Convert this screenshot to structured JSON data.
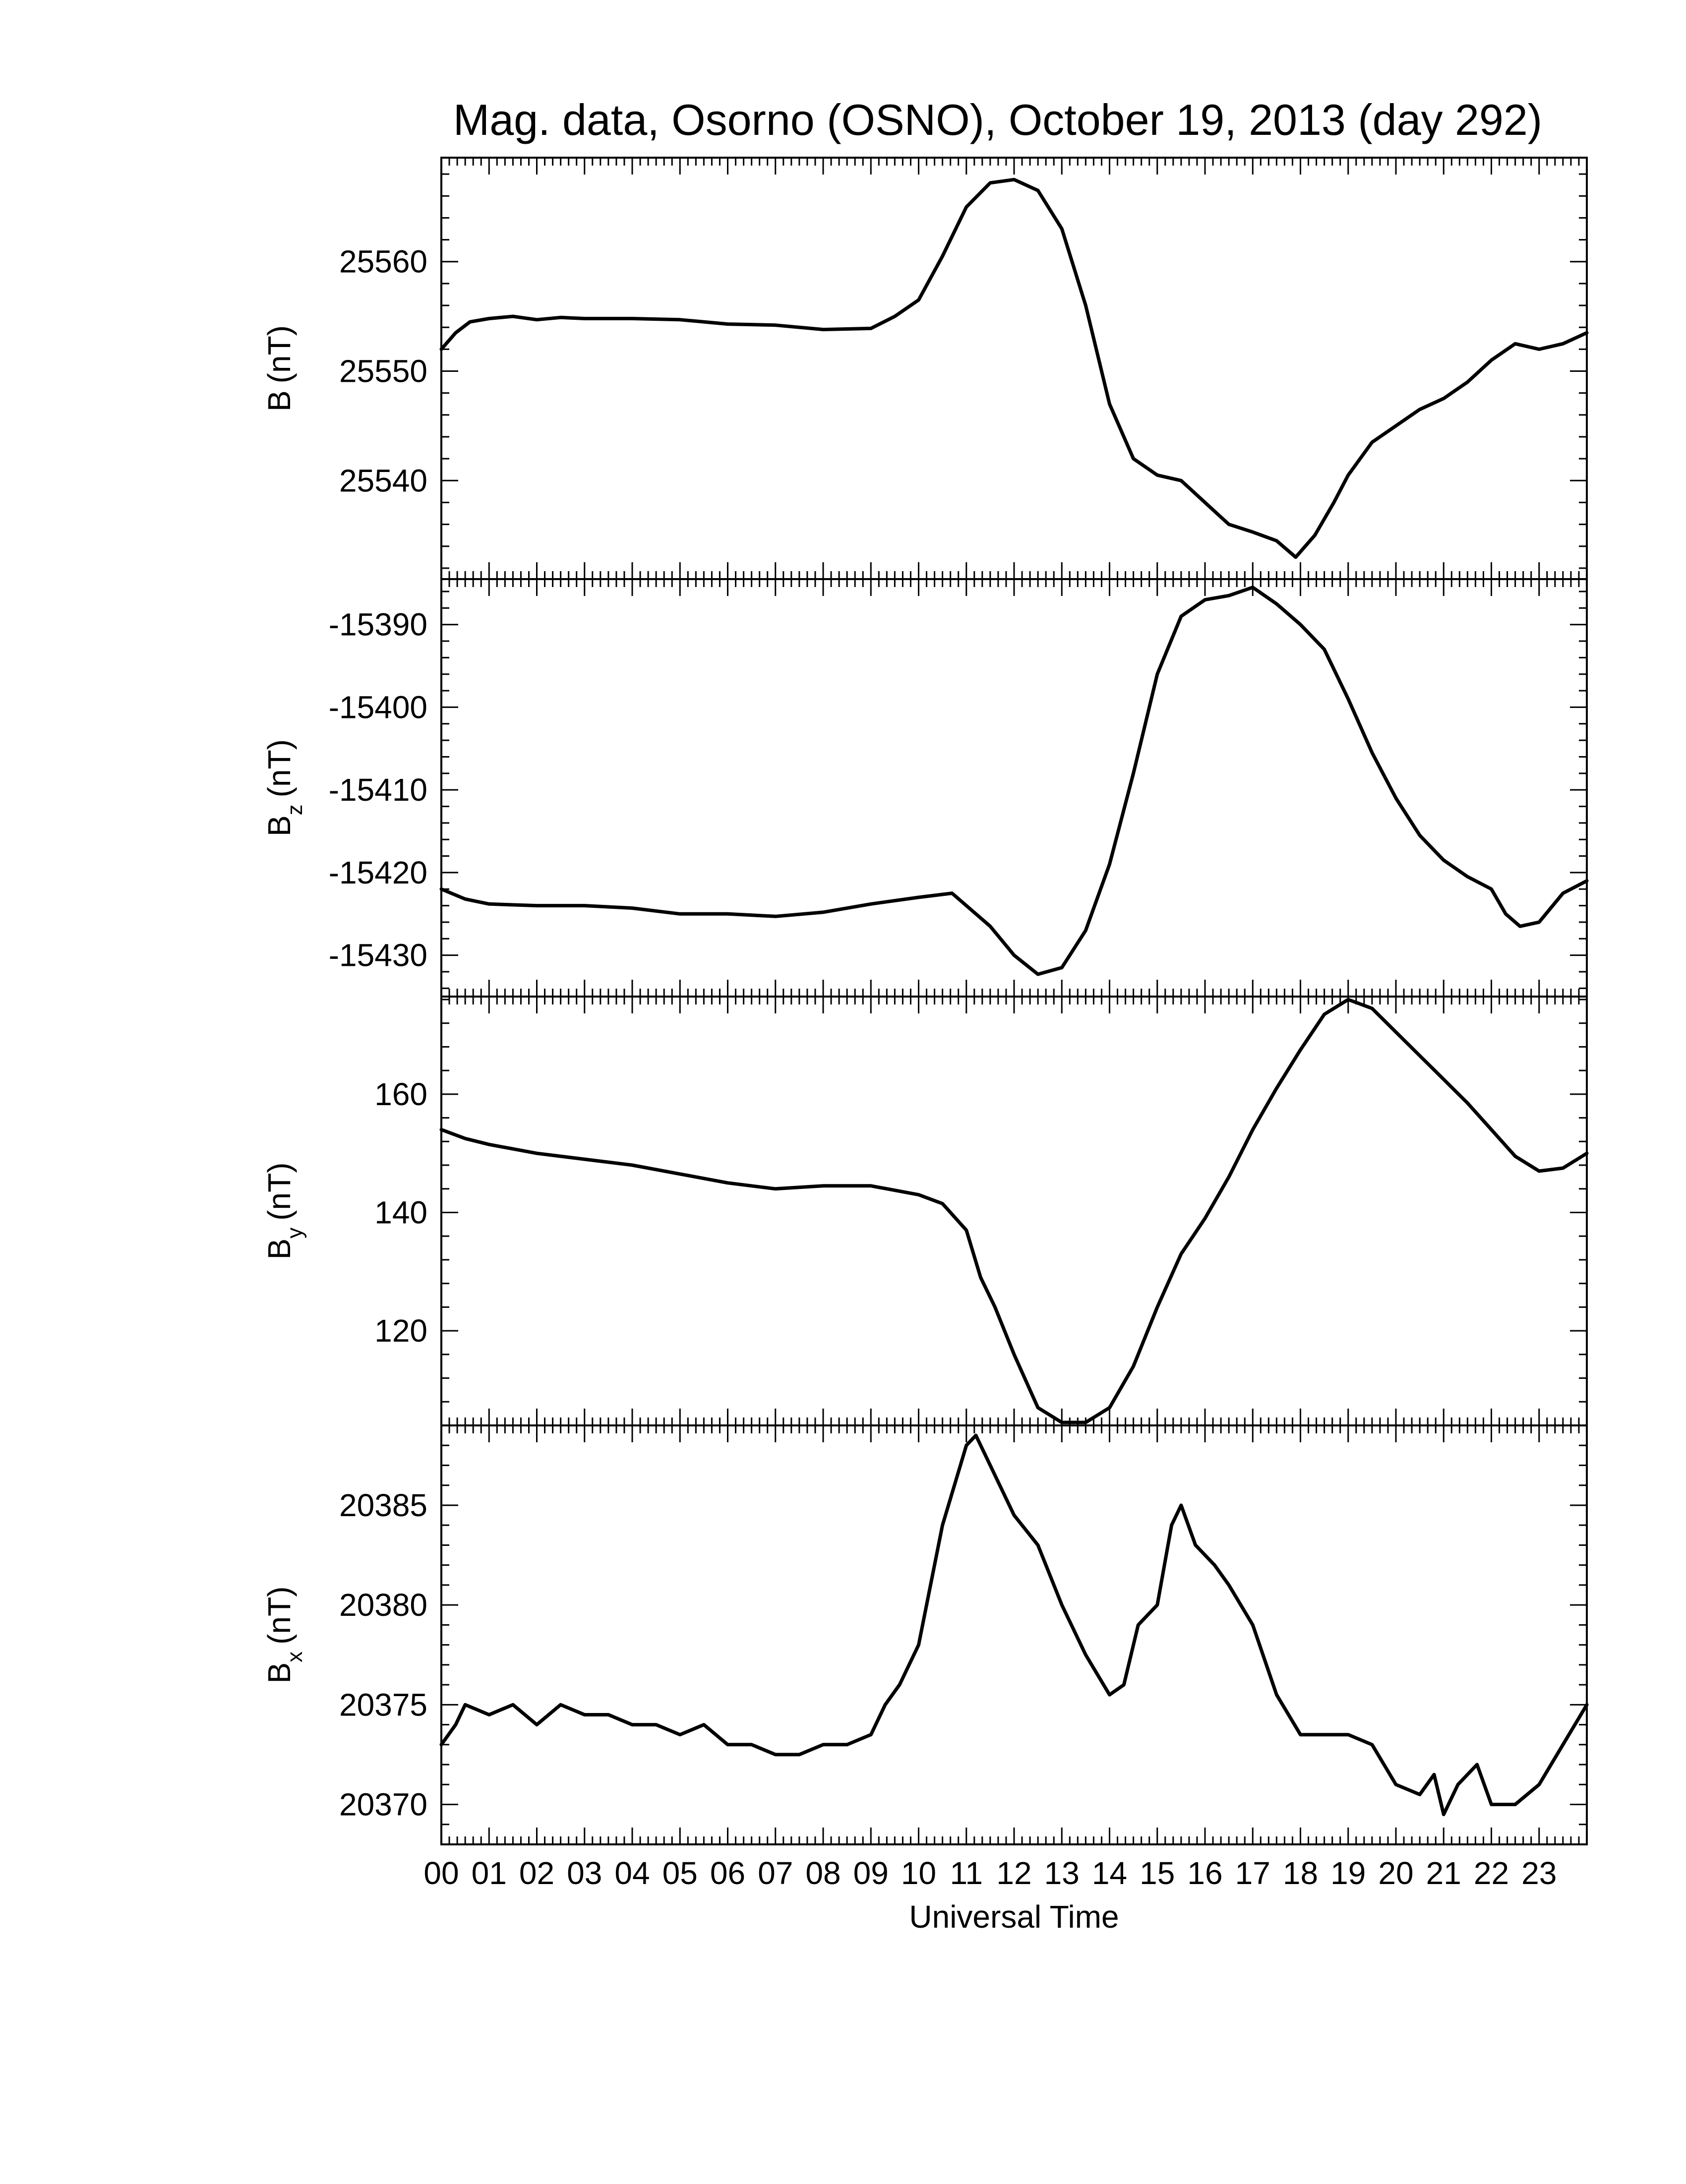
{
  "title": "Mag. data, Osorno (OSNO), October 19, 2013 (day 292)",
  "xlabel": "Universal Time",
  "x_ticks": [
    "00",
    "01",
    "02",
    "03",
    "04",
    "05",
    "06",
    "07",
    "08",
    "09",
    "10",
    "11",
    "12",
    "13",
    "14",
    "15",
    "16",
    "17",
    "18",
    "19",
    "20",
    "21",
    "22",
    "23"
  ],
  "chart_data": [
    {
      "type": "line",
      "panel": "B",
      "ylabel": "B (nT)",
      "ylabel_main": "B",
      "ylabel_sub": "",
      "ylabel_unit": "(nT)",
      "xlim": [
        0,
        24
      ],
      "ylim": [
        25531,
        25569.5
      ],
      "yticks": [
        25540,
        25550,
        25560
      ],
      "x": [
        0,
        0.3,
        0.6,
        1,
        1.5,
        2,
        2.5,
        3,
        4,
        5,
        6,
        7,
        8,
        9,
        9.5,
        10,
        10.5,
        11,
        11.5,
        12,
        12.5,
        13,
        13.5,
        14,
        14.5,
        15,
        15.5,
        16,
        16.5,
        17,
        17.5,
        17.9,
        18.3,
        18.7,
        19,
        19.5,
        20,
        20.5,
        21,
        21.5,
        22,
        22.5,
        23,
        23.5,
        24
      ],
      "values": [
        25552,
        25553.5,
        25554.5,
        25554.8,
        25555,
        25554.7,
        25554.9,
        25554.8,
        25554.8,
        25554.7,
        25554.3,
        25554.2,
        25553.8,
        25553.9,
        25555,
        25556.5,
        25560.5,
        25565,
        25567.2,
        25567.5,
        25566.5,
        25563,
        25556,
        25547,
        25542,
        25540.5,
        25540,
        25538,
        25536,
        25535.3,
        25534.5,
        25533,
        25535,
        25538,
        25540.5,
        25543.5,
        25545,
        25546.5,
        25547.5,
        25549,
        25551,
        25552.5,
        25552,
        25552.5,
        25553.5
      ]
    },
    {
      "type": "line",
      "panel": "Bz",
      "ylabel": "Bz (nT)",
      "ylabel_main": "B",
      "ylabel_sub": "z",
      "ylabel_unit": "(nT)",
      "xlim": [
        0,
        24
      ],
      "ylim": [
        -15435,
        -15384.5
      ],
      "yticks": [
        -15430,
        -15420,
        -15410,
        -15400,
        -15390
      ],
      "x": [
        0,
        0.5,
        1,
        2,
        3,
        4,
        5,
        6,
        7,
        8,
        9,
        10,
        10.7,
        11,
        11.5,
        12,
        12.5,
        13,
        13.5,
        14,
        14.5,
        15,
        15.5,
        16,
        16.5,
        17,
        17.5,
        18,
        18.5,
        19,
        19.5,
        20,
        20.5,
        21,
        21.5,
        22,
        22.3,
        22.6,
        23,
        23.5,
        24
      ],
      "values": [
        -15422,
        -15423.2,
        -15423.8,
        -15424,
        -15424,
        -15424.3,
        -15425,
        -15425,
        -15425.3,
        -15424.8,
        -15423.8,
        -15423,
        -15422.5,
        -15424,
        -15426.5,
        -15430,
        -15432.3,
        -15431.5,
        -15427,
        -15419,
        -15408,
        -15396,
        -15389,
        -15387,
        -15386.5,
        -15385.5,
        -15387.5,
        -15390,
        -15393,
        -15399,
        -15405.5,
        -15411,
        -15415.5,
        -15418.5,
        -15420.5,
        -15422,
        -15425,
        -15426.5,
        -15426,
        -15422.5,
        -15421
      ]
    },
    {
      "type": "line",
      "panel": "By",
      "ylabel": "By (nT)",
      "ylabel_main": "B",
      "ylabel_sub": "y",
      "ylabel_unit": "(nT)",
      "xlim": [
        0,
        24
      ],
      "ylim": [
        104,
        176.5
      ],
      "yticks": [
        120,
        140,
        160
      ],
      "x": [
        0,
        0.5,
        1,
        2,
        3,
        4,
        5,
        6,
        7,
        8,
        9,
        10,
        10.5,
        11,
        11.3,
        11.6,
        12,
        12.5,
        13,
        13.5,
        14,
        14.5,
        15,
        15.5,
        16,
        16.5,
        17,
        17.5,
        18,
        18.5,
        19,
        19.5,
        20,
        20.5,
        21,
        21.5,
        22,
        22.5,
        23,
        23.5,
        24
      ],
      "values": [
        154,
        152.5,
        151.5,
        150,
        149,
        148,
        146.5,
        145,
        144,
        144.5,
        144.5,
        143,
        141.5,
        137,
        129,
        124,
        116,
        107,
        104.5,
        104.5,
        107,
        114,
        124,
        133,
        139,
        146,
        154,
        161,
        167.5,
        173.5,
        176,
        174.5,
        170.5,
        166.5,
        162.5,
        158.5,
        154,
        149.5,
        147,
        147.5,
        150
      ]
    },
    {
      "type": "line",
      "panel": "Bx",
      "ylabel": "Bx (nT)",
      "ylabel_main": "B",
      "ylabel_sub": "x",
      "ylabel_unit": "(nT)",
      "xlim": [
        0,
        24
      ],
      "ylim": [
        20368,
        20389
      ],
      "yticks": [
        20370,
        20375,
        20380,
        20385
      ],
      "x": [
        0,
        0.3,
        0.5,
        1,
        1.5,
        2,
        2.5,
        3,
        3.5,
        4,
        4.5,
        5,
        5.5,
        6,
        6.5,
        7,
        7.5,
        8,
        8.5,
        9,
        9.3,
        9.6,
        10,
        10.5,
        11,
        11.2,
        11.5,
        12,
        12.5,
        13,
        13.5,
        14,
        14.3,
        14.6,
        15,
        15.3,
        15.5,
        15.8,
        16.2,
        16.5,
        17,
        17.5,
        18,
        18.5,
        19,
        19.5,
        20,
        20.5,
        20.8,
        21,
        21.3,
        21.7,
        22,
        22.5,
        23,
        23.5,
        24
      ],
      "values": [
        20373,
        20374,
        20375,
        20374.5,
        20375,
        20374,
        20375,
        20374.5,
        20374.5,
        20374,
        20374,
        20373.5,
        20374,
        20373,
        20373,
        20372.5,
        20372.5,
        20373,
        20373,
        20373.5,
        20375,
        20376,
        20378,
        20384,
        20388,
        20388.5,
        20387,
        20384.5,
        20383,
        20380,
        20377.5,
        20375.5,
        20376,
        20379,
        20380,
        20384,
        20385,
        20383,
        20382,
        20381,
        20379,
        20375.5,
        20373.5,
        20373.5,
        20373.5,
        20373,
        20371,
        20370.5,
        20371.5,
        20369.5,
        20371,
        20372,
        20370,
        20370,
        20371,
        20373,
        20375
      ]
    }
  ]
}
